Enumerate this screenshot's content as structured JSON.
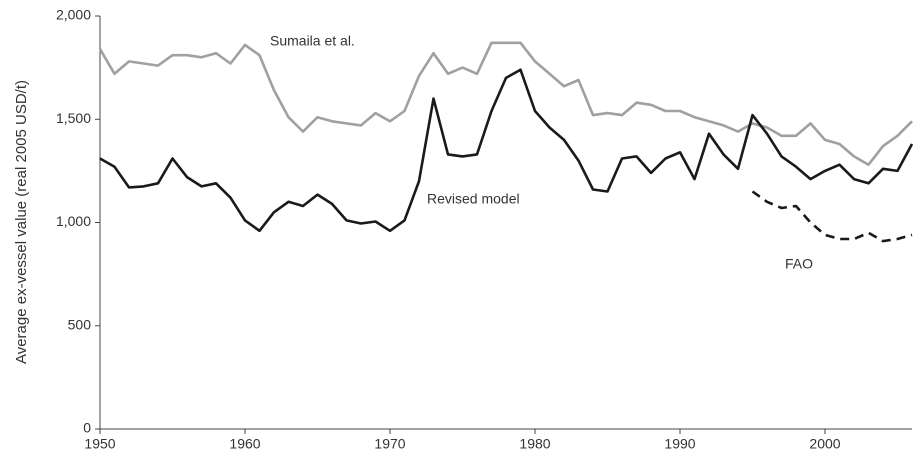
{
  "chart_data": {
    "type": "line",
    "ylabel": "Average ex-vessel value (real 2005 USD/t)",
    "x": [
      1950,
      1951,
      1952,
      1953,
      1954,
      1955,
      1956,
      1957,
      1958,
      1959,
      1960,
      1961,
      1962,
      1963,
      1964,
      1965,
      1966,
      1967,
      1968,
      1969,
      1970,
      1971,
      1972,
      1973,
      1974,
      1975,
      1976,
      1977,
      1978,
      1979,
      1980,
      1981,
      1982,
      1983,
      1984,
      1985,
      1986,
      1987,
      1988,
      1989,
      1990,
      1991,
      1992,
      1993,
      1994,
      1995,
      1996,
      1997,
      1998,
      1999,
      2000,
      2001,
      2002,
      2003,
      2004,
      2005,
      2006
    ],
    "series": [
      {
        "name": "Sumaila et al.",
        "color": "#a0a0a0",
        "dash": false,
        "values": [
          1840,
          1720,
          1780,
          1770,
          1760,
          1810,
          1810,
          1800,
          1820,
          1770,
          1860,
          1810,
          1640,
          1510,
          1440,
          1510,
          1490,
          1480,
          1470,
          1530,
          1490,
          1540,
          1710,
          1820,
          1720,
          1750,
          1720,
          1870,
          1870,
          1870,
          1780,
          1720,
          1660,
          1690,
          1520,
          1530,
          1520,
          1580,
          1570,
          1540,
          1540,
          1510,
          1490,
          1470,
          1440,
          1480,
          1460,
          1420,
          1420,
          1480,
          1400,
          1380,
          1320,
          1280,
          1370,
          1420,
          1490
        ]
      },
      {
        "name": "Revised model",
        "color": "#1a1a1a",
        "dash": false,
        "values": [
          1310,
          1270,
          1170,
          1175,
          1190,
          1310,
          1220,
          1175,
          1190,
          1120,
          1010,
          960,
          1050,
          1100,
          1080,
          1135,
          1090,
          1010,
          995,
          1005,
          960,
          1010,
          1200,
          1600,
          1330,
          1320,
          1330,
          1540,
          1700,
          1740,
          1540,
          1460,
          1400,
          1300,
          1160,
          1150,
          1310,
          1320,
          1240,
          1310,
          1340,
          1210,
          1430,
          1330,
          1260,
          1520,
          1430,
          1320,
          1270,
          1210,
          1250,
          1280,
          1210,
          1190,
          1260,
          1250,
          1380
        ]
      },
      {
        "name": "FAO",
        "color": "#1a1a1a",
        "dash": true,
        "values": [
          null,
          null,
          null,
          null,
          null,
          null,
          null,
          null,
          null,
          null,
          null,
          null,
          null,
          null,
          null,
          null,
          null,
          null,
          null,
          null,
          null,
          null,
          null,
          null,
          null,
          null,
          null,
          null,
          null,
          null,
          null,
          null,
          null,
          null,
          null,
          null,
          null,
          null,
          null,
          null,
          null,
          null,
          null,
          null,
          null,
          1150,
          1100,
          1070,
          1080,
          1000,
          940,
          920,
          920,
          950,
          910,
          920,
          940
        ]
      }
    ],
    "xlim": [
      1950,
      2006
    ],
    "ylim": [
      0,
      2000
    ],
    "xticks": [
      1950,
      1960,
      1970,
      1980,
      1990,
      2000
    ],
    "yticks": [
      0,
      500,
      {
        "value": 1000,
        "label": "1,000"
      },
      {
        "value": 1500,
        "label": "1,500"
      },
      {
        "value": 2000,
        "label": "2,000"
      }
    ],
    "grid": false
  }
}
